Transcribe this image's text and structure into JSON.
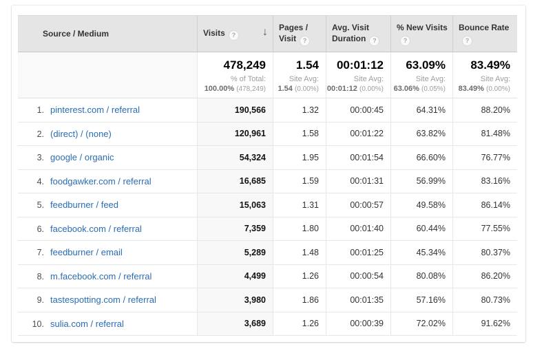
{
  "icons": {
    "help": "?",
    "sort_descending": "↓"
  },
  "colors": {
    "link": "#2a6db4",
    "header_bg": "#e5e5e5",
    "sorted_column_bg": "#f8f8f8",
    "grid_border": "#e7e7e7"
  },
  "table": {
    "columns": [
      {
        "id": "source",
        "label": "Source / Medium",
        "label_lines": [
          "Source / Medium"
        ],
        "help": false,
        "sorted": ""
      },
      {
        "id": "visits",
        "label": "Visits",
        "label_lines": [
          "Visits"
        ],
        "help": true,
        "sorted": "descending"
      },
      {
        "id": "pages_per_visit",
        "label": "Pages / Visit",
        "label_lines": [
          "Pages /",
          "Visit"
        ],
        "help": true,
        "sorted": ""
      },
      {
        "id": "avg_visit_duration",
        "label": "Avg. Visit Duration",
        "label_lines": [
          "Avg. Visit",
          "Duration"
        ],
        "help": true,
        "sorted": ""
      },
      {
        "id": "pct_new_visits",
        "label": "% New Visits",
        "label_lines": [
          "% New Visits"
        ],
        "help": true,
        "sorted": ""
      },
      {
        "id": "bounce_rate",
        "label": "Bounce Rate",
        "label_lines": [
          "Bounce Rate"
        ],
        "help": true,
        "sorted": ""
      }
    ],
    "totals": {
      "visits": {
        "value": "478,249",
        "sub_label": "% of Total:",
        "sub_value": "100.00%",
        "sub_note": "(478,249)"
      },
      "pages_per_visit": {
        "value": "1.54",
        "sub_label": "Site Avg:",
        "sub_value": "1.54",
        "sub_note": "(0.00%)"
      },
      "avg_visit_duration": {
        "value": "00:01:12",
        "sub_label": "Site Avg:",
        "sub_value": "00:01:12",
        "sub_note": "(0.00%)"
      },
      "pct_new_visits": {
        "value": "63.09%",
        "sub_label": "Site Avg:",
        "sub_value": "63.06%",
        "sub_note": "(0.05%)"
      },
      "bounce_rate": {
        "value": "83.49%",
        "sub_label": "Site Avg:",
        "sub_value": "83.49%",
        "sub_note": "(0.00%)"
      }
    },
    "rows": [
      {
        "index": "1.",
        "source": "pinterest.com / referral",
        "visits": "190,566",
        "pages_per_visit": "1.32",
        "avg_visit_duration": "00:00:45",
        "pct_new_visits": "64.31%",
        "bounce_rate": "88.20%"
      },
      {
        "index": "2.",
        "source": "(direct) / (none)",
        "visits": "120,961",
        "pages_per_visit": "1.58",
        "avg_visit_duration": "00:01:22",
        "pct_new_visits": "63.82%",
        "bounce_rate": "81.48%"
      },
      {
        "index": "3.",
        "source": "google / organic",
        "visits": "54,324",
        "pages_per_visit": "1.95",
        "avg_visit_duration": "00:01:54",
        "pct_new_visits": "66.60%",
        "bounce_rate": "76.77%"
      },
      {
        "index": "4.",
        "source": "foodgawker.com / referral",
        "visits": "16,685",
        "pages_per_visit": "1.59",
        "avg_visit_duration": "00:01:31",
        "pct_new_visits": "56.99%",
        "bounce_rate": "83.16%"
      },
      {
        "index": "5.",
        "source": "feedburner / feed",
        "visits": "15,063",
        "pages_per_visit": "1.31",
        "avg_visit_duration": "00:00:57",
        "pct_new_visits": "49.58%",
        "bounce_rate": "86.14%"
      },
      {
        "index": "6.",
        "source": "facebook.com / referral",
        "visits": "7,359",
        "pages_per_visit": "1.80",
        "avg_visit_duration": "00:01:40",
        "pct_new_visits": "60.44%",
        "bounce_rate": "77.55%"
      },
      {
        "index": "7.",
        "source": "feedburner / email",
        "visits": "5,289",
        "pages_per_visit": "1.48",
        "avg_visit_duration": "00:01:25",
        "pct_new_visits": "45.34%",
        "bounce_rate": "80.37%"
      },
      {
        "index": "8.",
        "source": "m.facebook.com / referral",
        "visits": "4,499",
        "pages_per_visit": "1.26",
        "avg_visit_duration": "00:00:54",
        "pct_new_visits": "80.08%",
        "bounce_rate": "86.20%"
      },
      {
        "index": "9.",
        "source": "tastespotting.com / referral",
        "visits": "3,980",
        "pages_per_visit": "1.86",
        "avg_visit_duration": "00:01:35",
        "pct_new_visits": "57.16%",
        "bounce_rate": "80.73%"
      },
      {
        "index": "10.",
        "source": "sulia.com / referral",
        "visits": "3,689",
        "pages_per_visit": "1.26",
        "avg_visit_duration": "00:00:39",
        "pct_new_visits": "72.02%",
        "bounce_rate": "91.62%"
      }
    ]
  }
}
